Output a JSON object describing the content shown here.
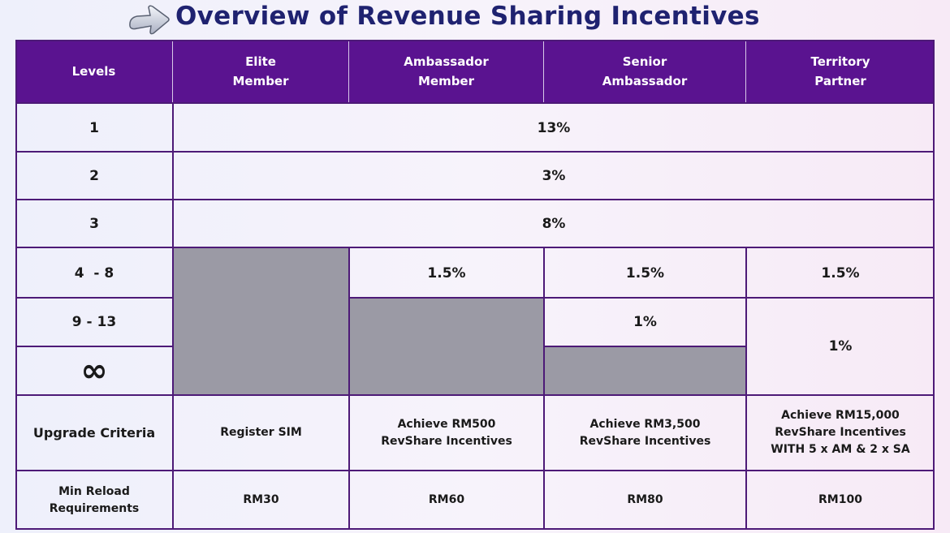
{
  "title": "Overview of Revenue Sharing Incentives",
  "colors": {
    "header_bg": "#5a1390",
    "grid": "#4d1a77",
    "title": "#1f2270",
    "gray_fill": "#9b9aa5"
  },
  "icons": {
    "title_icon": "pointing-arrow-icon",
    "infinity": "infinity-icon"
  },
  "headers": {
    "levels": "Levels",
    "elite_l1": "Elite",
    "elite_l2": "Member",
    "ambassador_l1": "Ambassador",
    "ambassador_l2": "Member",
    "senior_l1": "Senior",
    "senior_l2": "Ambassador",
    "territory_l1": "Territory",
    "territory_l2": "Partner"
  },
  "rows": {
    "level1": {
      "label": "1",
      "value": "13%"
    },
    "level2": {
      "label": "2",
      "value": "3%"
    },
    "level3": {
      "label": "3",
      "value": "8%"
    },
    "level4_8": {
      "label": "4  - 8",
      "ambassador": "1.5%",
      "senior": "1.5%",
      "territory": "1.5%"
    },
    "level9_13": {
      "label": "9 - 13",
      "senior": "1%"
    },
    "territory_9_inf": "1%",
    "infinity_symbol": "∞"
  },
  "upgrade": {
    "label": "Upgrade Criteria",
    "elite": "Register SIM",
    "ambassador_l1": "Achieve RM500",
    "ambassador_l2": "RevShare Incentives",
    "senior_l1": "Achieve RM3,500",
    "senior_l2": "RevShare Incentives",
    "territory_l1": "Achieve RM15,000",
    "territory_l2": "RevShare Incentives",
    "territory_l3": "WITH 5 x AM & 2 x SA"
  },
  "reload": {
    "label_l1": "Min Reload",
    "label_l2": "Requirements",
    "elite": "RM30",
    "ambassador": "RM60",
    "senior": "RM80",
    "territory": "RM100"
  }
}
